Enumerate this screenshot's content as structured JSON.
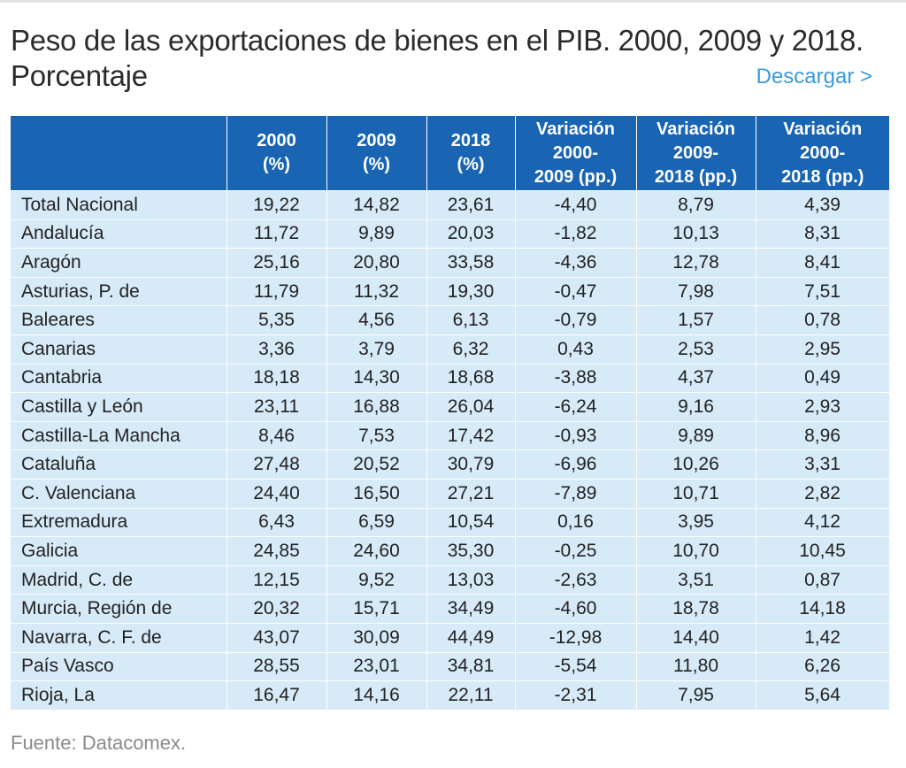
{
  "title": "Peso de las exportaciones de bienes en el PIB. 2000, 2009 y 2018. Porcentaje",
  "download_label": "Descargar >",
  "source": "Fuente: Datacomex.",
  "chart_data": {
    "type": "table",
    "columns": [
      "",
      "2000 (%)",
      "2009 (%)",
      "2018 (%)",
      "Variación 2000-2009 (pp.)",
      "Variación 2009-2018 (pp.)",
      "Variación 2000-2018 (pp.)"
    ],
    "rows": [
      [
        "Total Nacional",
        "19,22",
        "14,82",
        "23,61",
        "-4,40",
        "8,79",
        "4,39"
      ],
      [
        "Andalucía",
        "11,72",
        "9,89",
        "20,03",
        "-1,82",
        "10,13",
        "8,31"
      ],
      [
        "Aragón",
        "25,16",
        "20,80",
        "33,58",
        "-4,36",
        "12,78",
        "8,41"
      ],
      [
        "Asturias, P. de",
        "11,79",
        "11,32",
        "19,30",
        "-0,47",
        "7,98",
        "7,51"
      ],
      [
        "Baleares",
        "5,35",
        "4,56",
        "6,13",
        "-0,79",
        "1,57",
        "0,78"
      ],
      [
        "Canarias",
        "3,36",
        "3,79",
        "6,32",
        "0,43",
        "2,53",
        "2,95"
      ],
      [
        "Cantabria",
        "18,18",
        "14,30",
        "18,68",
        "-3,88",
        "4,37",
        "0,49"
      ],
      [
        "Castilla y León",
        "23,11",
        "16,88",
        "26,04",
        "-6,24",
        "9,16",
        "2,93"
      ],
      [
        "Castilla-La Mancha",
        "8,46",
        "7,53",
        "17,42",
        "-0,93",
        "9,89",
        "8,96"
      ],
      [
        "Cataluña",
        "27,48",
        "20,52",
        "30,79",
        "-6,96",
        "10,26",
        "3,31"
      ],
      [
        "C. Valenciana",
        "24,40",
        "16,50",
        "27,21",
        "-7,89",
        "10,71",
        "2,82"
      ],
      [
        "Extremadura",
        "6,43",
        "6,59",
        "10,54",
        "0,16",
        "3,95",
        "4,12"
      ],
      [
        "Galicia",
        "24,85",
        "24,60",
        "35,30",
        "-0,25",
        "10,70",
        "10,45"
      ],
      [
        "Madrid, C. de",
        "12,15",
        "9,52",
        "13,03",
        "-2,63",
        "3,51",
        "0,87"
      ],
      [
        "Murcia, Región de",
        "20,32",
        "15,71",
        "34,49",
        "-4,60",
        "18,78",
        "14,18"
      ],
      [
        "Navarra, C. F. de",
        "43,07",
        "30,09",
        "44,49",
        "-12,98",
        "14,40",
        "1,42"
      ],
      [
        "País Vasco",
        "28,55",
        "23,01",
        "34,81",
        "-5,54",
        "11,80",
        "6,26"
      ],
      [
        "Rioja, La",
        "16,47",
        "14,16",
        "22,11",
        "-2,31",
        "7,95",
        "5,64"
      ]
    ]
  }
}
